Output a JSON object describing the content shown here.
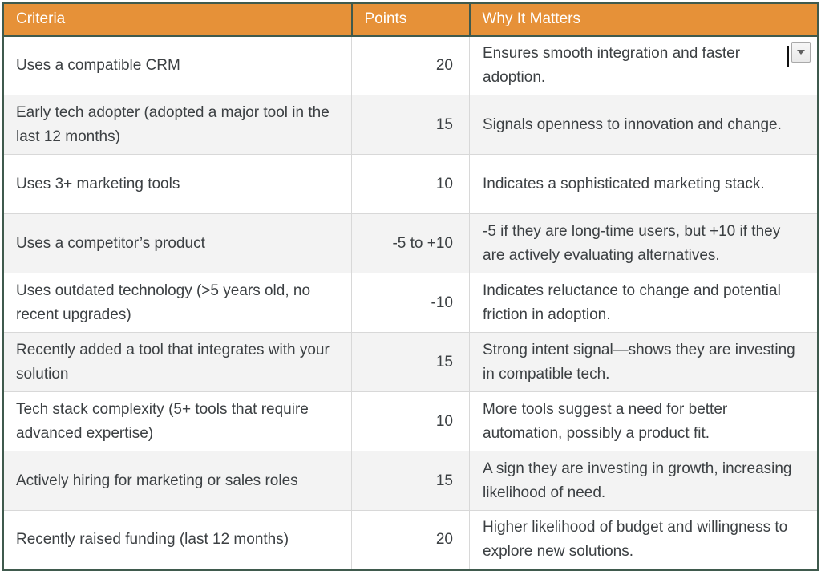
{
  "table": {
    "columns": [
      "Criteria",
      "Points",
      "Why It Matters"
    ],
    "rows": [
      {
        "criteria": "Uses a compatible CRM",
        "points": "20",
        "why": "Ensures smooth integration and faster adoption."
      },
      {
        "criteria": "Early tech adopter (adopted a major tool in the last 12 months)",
        "points": "15",
        "why": "Signals openness to innovation and change."
      },
      {
        "criteria": "Uses 3+ marketing tools",
        "points": "10",
        "why": "Indicates a sophisticated marketing stack."
      },
      {
        "criteria": "Uses a competitor’s product",
        "points": "-5 to +10",
        "why": "-5 if they are long-time users, but +10 if they are actively evaluating alternatives."
      },
      {
        "criteria": "Uses outdated technology (>5 years old, no recent upgrades)",
        "points": "-10",
        "why": "Indicates reluctance to change and potential friction in adoption."
      },
      {
        "criteria": "Recently added a tool that integrates with your solution",
        "points": "15",
        "why": "Strong intent signal—shows they are investing in compatible tech."
      },
      {
        "criteria": "Tech stack complexity (5+ tools that require advanced expertise)",
        "points": "10",
        "why": "More tools suggest a need for better automation, possibly a product fit."
      },
      {
        "criteria": "Actively hiring for marketing or sales roles",
        "points": "15",
        "why": "A sign they are investing in growth, increasing likelihood of need."
      },
      {
        "criteria": "Recently raised funding (last 12 months)",
        "points": "20",
        "why": "Higher likelihood of budget and willingness to explore new solutions."
      }
    ]
  },
  "colors": {
    "header_bg": "#E69138",
    "header_text": "#FFFFFF",
    "outer_border": "#3F5A4D",
    "body_border": "#D8D8D8",
    "alt_row_bg": "#F3F3F3",
    "text": "#3C4043"
  },
  "widgets": {
    "dropdown_icon": "chevron-down"
  }
}
